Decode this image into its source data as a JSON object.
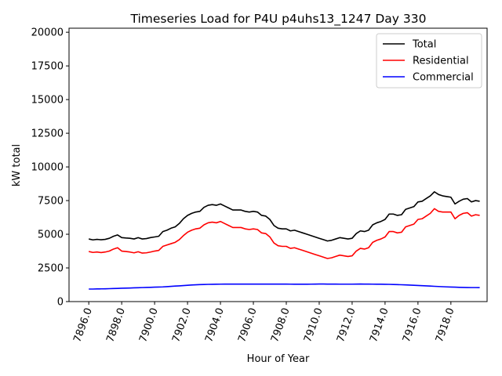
{
  "chart_data": {
    "type": "line",
    "title": "Timeseries Load for P4U p4uhs13_1247  Day 330",
    "xlabel": "Hour of Year",
    "ylabel": "kW total",
    "xlim": [
      7894.8,
      7920.2
    ],
    "ylim": [
      0,
      20300
    ],
    "x_ticks": [
      7896,
      7898,
      7900,
      7902,
      7904,
      7906,
      7908,
      7910,
      7912,
      7914,
      7916,
      7918
    ],
    "x_tick_labels": [
      "7896.0",
      "7898.0",
      "7900.0",
      "7902.0",
      "7904.0",
      "7906.0",
      "7908.0",
      "7910.0",
      "7912.0",
      "7914.0",
      "7916.0",
      "7918.0"
    ],
    "y_ticks": [
      0,
      2500,
      5000,
      7500,
      10000,
      12500,
      15000,
      17500,
      20000
    ],
    "y_tick_labels": [
      "0",
      "2500",
      "5000",
      "7500",
      "10000",
      "12500",
      "15000",
      "17500",
      "20000"
    ],
    "grid": false,
    "legend_position": "top-right",
    "x": [
      7896.0,
      7896.25,
      7896.5,
      7896.75,
      7897.0,
      7897.25,
      7897.5,
      7897.75,
      7898.0,
      7898.25,
      7898.5,
      7898.75,
      7899.0,
      7899.25,
      7899.5,
      7899.75,
      7900.0,
      7900.25,
      7900.5,
      7900.75,
      7901.0,
      7901.25,
      7901.5,
      7901.75,
      7902.0,
      7902.25,
      7902.5,
      7902.75,
      7903.0,
      7903.25,
      7903.5,
      7903.75,
      7904.0,
      7904.25,
      7904.5,
      7904.75,
      7905.0,
      7905.25,
      7905.5,
      7905.75,
      7906.0,
      7906.25,
      7906.5,
      7906.75,
      7907.0,
      7907.25,
      7907.5,
      7907.75,
      7908.0,
      7908.25,
      7908.5,
      7908.75,
      7909.0,
      7909.25,
      7909.5,
      7909.75,
      7910.0,
      7910.25,
      7910.5,
      7910.75,
      7911.0,
      7911.25,
      7911.5,
      7911.75,
      7912.0,
      7912.25,
      7912.5,
      7912.75,
      7913.0,
      7913.25,
      7913.5,
      7913.75,
      7914.0,
      7914.25,
      7914.5,
      7914.75,
      7915.0,
      7915.25,
      7915.5,
      7915.75,
      7916.0,
      7916.25,
      7916.5,
      7916.75,
      7917.0,
      7917.25,
      7917.5,
      7917.75,
      7918.0,
      7918.25,
      7918.5,
      7918.75,
      7919.0,
      7919.25,
      7919.5,
      7919.75
    ],
    "series": [
      {
        "name": "Total",
        "color": "#000000",
        "values": [
          4650,
          4580,
          4620,
          4590,
          4620,
          4700,
          4850,
          4950,
          4750,
          4720,
          4700,
          4650,
          4750,
          4650,
          4680,
          4750,
          4800,
          4850,
          5200,
          5300,
          5450,
          5550,
          5800,
          6150,
          6400,
          6550,
          6650,
          6700,
          7000,
          7150,
          7200,
          7150,
          7250,
          7100,
          6950,
          6800,
          6800,
          6800,
          6700,
          6650,
          6700,
          6650,
          6400,
          6350,
          6100,
          5650,
          5450,
          5400,
          5400,
          5250,
          5300,
          5200,
          5100,
          5000,
          4900,
          4800,
          4700,
          4600,
          4500,
          4550,
          4650,
          4750,
          4700,
          4650,
          4700,
          5050,
          5250,
          5200,
          5300,
          5700,
          5850,
          5950,
          6100,
          6500,
          6500,
          6400,
          6450,
          6850,
          6950,
          7050,
          7400,
          7450,
          7650,
          7850,
          8150,
          7950,
          7850,
          7800,
          7750,
          7250,
          7450,
          7600,
          7650,
          7400,
          7500,
          7450
        ]
      },
      {
        "name": "Residential",
        "color": "#ff0000",
        "values": [
          3720,
          3650,
          3680,
          3640,
          3680,
          3750,
          3900,
          4000,
          3750,
          3720,
          3680,
          3620,
          3700,
          3600,
          3620,
          3680,
          3750,
          3800,
          4100,
          4200,
          4300,
          4400,
          4600,
          4900,
          5150,
          5300,
          5400,
          5450,
          5700,
          5850,
          5900,
          5850,
          5950,
          5800,
          5650,
          5500,
          5500,
          5500,
          5400,
          5350,
          5400,
          5350,
          5100,
          5050,
          4800,
          4350,
          4150,
          4100,
          4100,
          3950,
          4000,
          3900,
          3800,
          3700,
          3600,
          3500,
          3400,
          3300,
          3200,
          3250,
          3350,
          3450,
          3400,
          3350,
          3400,
          3750,
          3950,
          3900,
          4000,
          4400,
          4550,
          4650,
          4800,
          5200,
          5200,
          5100,
          5150,
          5550,
          5650,
          5750,
          6100,
          6150,
          6350,
          6550,
          6900,
          6700,
          6650,
          6650,
          6650,
          6150,
          6400,
          6550,
          6600,
          6350,
          6450,
          6400
        ]
      },
      {
        "name": "Commercial",
        "color": "#0000ff",
        "values": [
          930,
          930,
          940,
          945,
          950,
          960,
          970,
          980,
          990,
          1000,
          1010,
          1020,
          1030,
          1040,
          1050,
          1060,
          1070,
          1080,
          1090,
          1110,
          1130,
          1150,
          1170,
          1190,
          1210,
          1230,
          1245,
          1260,
          1270,
          1280,
          1285,
          1290,
          1295,
          1298,
          1300,
          1300,
          1300,
          1300,
          1300,
          1300,
          1300,
          1300,
          1300,
          1300,
          1300,
          1300,
          1300,
          1300,
          1300,
          1295,
          1290,
          1290,
          1290,
          1290,
          1295,
          1300,
          1305,
          1305,
          1300,
          1300,
          1300,
          1295,
          1295,
          1295,
          1295,
          1300,
          1305,
          1300,
          1300,
          1295,
          1290,
          1290,
          1285,
          1280,
          1270,
          1260,
          1250,
          1240,
          1225,
          1210,
          1195,
          1180,
          1165,
          1150,
          1135,
          1120,
          1105,
          1090,
          1080,
          1070,
          1060,
          1050,
          1045,
          1040,
          1040,
          1035
        ]
      }
    ]
  }
}
